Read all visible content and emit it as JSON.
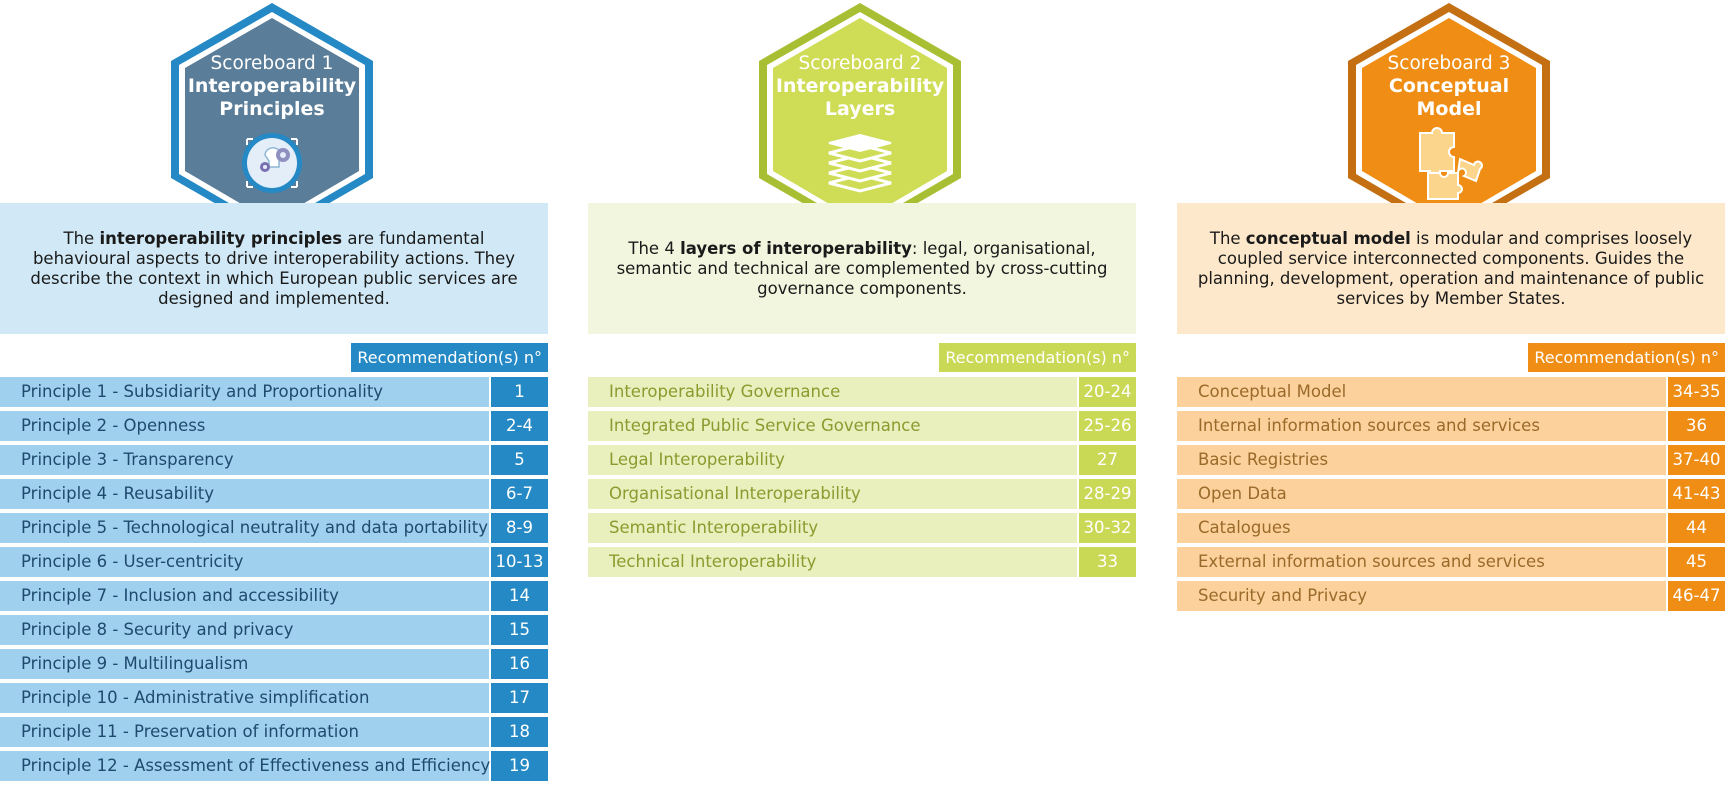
{
  "scoreboards": [
    {
      "title": "Scoreboard 1",
      "subtitle_line1": "Interoperability",
      "subtitle_line2": "Principles",
      "icon": "lightbulb-gears-icon",
      "desc_before": "The ",
      "desc_bold": "interoperability principles",
      "desc_after": " are fundamental behavioural aspects to drive interoperability actions. They describe the context in which European public services are designed and implemented.",
      "rec_header": "Recommendation(s) n°",
      "colors": {
        "hex_fill": "#5a7d99",
        "hex_border": "#2489c5",
        "accent": "#2489c5",
        "row": "#9fd0ed",
        "desc_bg": "#d1e9f6"
      },
      "rows": [
        {
          "label": "Principle 1 - Subsidiarity and Proportionality",
          "rec": "1"
        },
        {
          "label": "Principle 2 - Openness",
          "rec": "2-4"
        },
        {
          "label": "Principle 3 - Transparency",
          "rec": "5"
        },
        {
          "label": "Principle 4 - Reusability",
          "rec": "6-7"
        },
        {
          "label": "Principle 5 - Technological neutrality and data portability",
          "rec": "8-9"
        },
        {
          "label": "Principle 6 - User-centricity",
          "rec": "10-13"
        },
        {
          "label": "Principle 7 - Inclusion and accessibility",
          "rec": "14"
        },
        {
          "label": "Principle 8 - Security and privacy",
          "rec": "15"
        },
        {
          "label": "Principle 9 - Multilingualism",
          "rec": "16"
        },
        {
          "label": "Principle 10 - Administrative simplification",
          "rec": "17"
        },
        {
          "label": "Principle 11 - Preservation of information",
          "rec": "18"
        },
        {
          "label": "Principle 12 - Assessment of Effectiveness and Efficiency",
          "rec": "19"
        }
      ]
    },
    {
      "title": "Scoreboard 2",
      "subtitle_line1": "Interoperability",
      "subtitle_line2": "Layers",
      "icon": "layers-icon",
      "desc_before": "The 4 ",
      "desc_bold": "layers of interoperability",
      "desc_after": ": legal, organisational, semantic and technical are complemented by cross-cutting governance components.",
      "rec_header": "Recommendation(s) n°",
      "colors": {
        "hex_fill": "#cfdc55",
        "hex_border": "#a8bf33",
        "accent": "#c9d855",
        "row": "#e9efbd",
        "desc_bg": "#f2f6df"
      },
      "rows": [
        {
          "label": "Interoperability Governance",
          "rec": "20-24"
        },
        {
          "label": "Integrated Public Service Governance",
          "rec": "25-26"
        },
        {
          "label": "Legal Interoperability",
          "rec": "27"
        },
        {
          "label": "Organisational Interoperability",
          "rec": "28-29"
        },
        {
          "label": "Semantic Interoperability",
          "rec": "30-32"
        },
        {
          "label": "Technical Interoperability",
          "rec": "33"
        }
      ]
    },
    {
      "title": "Scoreboard 3",
      "subtitle_line1": "Conceptual",
      "subtitle_line2": "Model",
      "icon": "puzzle-icon",
      "desc_before": "The ",
      "desc_bold": "conceptual model",
      "desc_after": " is modular and comprises loosely coupled service interconnected components. Guides the planning, development, operation and maintenance of public services by Member States.",
      "rec_header": "Recommendation(s) n°",
      "colors": {
        "hex_fill": "#ef8d14",
        "hex_border": "#c46f12",
        "accent": "#ef8d14",
        "row": "#fdd19b",
        "desc_bg": "#fde8cb"
      },
      "rows": [
        {
          "label": "Conceptual Model",
          "rec": "34-35"
        },
        {
          "label": "Internal information sources and services",
          "rec": "36"
        },
        {
          "label": "Basic Registries",
          "rec": "37-40"
        },
        {
          "label": "Open Data",
          "rec": "41-43"
        },
        {
          "label": "Catalogues",
          "rec": "44"
        },
        {
          "label": "External information sources and services",
          "rec": "45"
        },
        {
          "label": "Security and Privacy",
          "rec": "46-47"
        }
      ]
    }
  ]
}
